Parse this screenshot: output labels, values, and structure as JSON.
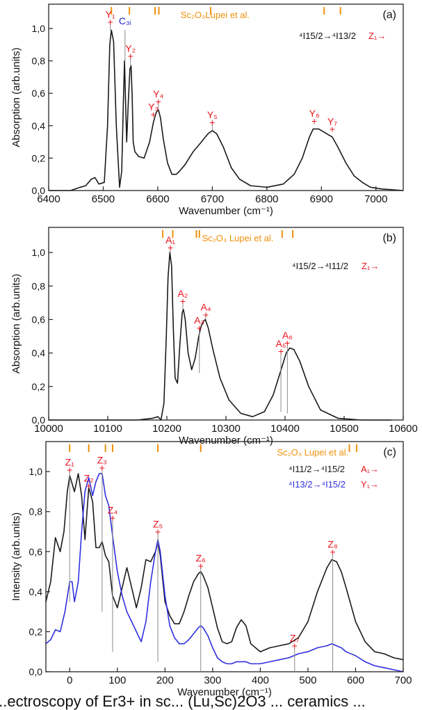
{
  "caption": "...ectroscopy of Er3+ in sc... (Lu,Sc)2O3 ... ceramics ...",
  "colors": {
    "black": "#1a1a1a",
    "blue": "#2f2fe0",
    "orange": "#f0900a",
    "red": "#e8141e",
    "c3i": "#2020d0",
    "gray": "#8a8a8a"
  },
  "chart_data": [
    {
      "type": "line",
      "panel_label": "(a)",
      "xlabel": "Wavenumber (cm⁻¹)",
      "ylabel": "Absorption (arb.units)",
      "xlim": [
        6400,
        7050
      ],
      "ylim": [
        0,
        1.15
      ],
      "x_ticks": [
        6400,
        6500,
        6600,
        6700,
        6800,
        6900,
        7000
      ],
      "y_ticks": [
        0.0,
        0.2,
        0.4,
        0.6,
        0.8,
        1.0
      ],
      "y_tick_labels": [
        "0,0",
        "0,2",
        "0,4",
        "0,6",
        "0,8",
        "1,0"
      ],
      "reference_label": "Sc₂O₃Lupei et al.",
      "reference_ticks": [
        6515,
        6548,
        6595,
        6602,
        6697,
        6905,
        6935
      ],
      "transition": {
        "from": "⁴I15/2",
        "to": "⁴I13/2",
        "level": "Z₁"
      },
      "series": [
        {
          "color": "#1a1a1a",
          "x": [
            6400,
            6440,
            6458,
            6468,
            6478,
            6485,
            6492,
            6502,
            6508,
            6512,
            6515,
            6519,
            6524,
            6530,
            6534,
            6537,
            6539,
            6541,
            6543,
            6546,
            6549,
            6551,
            6553,
            6555,
            6558,
            6565,
            6575,
            6585,
            6592,
            6597,
            6601,
            6605,
            6610,
            6618,
            6626,
            6634,
            6640,
            6650,
            6665,
            6680,
            6692,
            6700,
            6708,
            6720,
            6735,
            6750,
            6770,
            6800,
            6830,
            6850,
            6865,
            6878,
            6885,
            6895,
            6905,
            6915,
            6920,
            6930,
            6945,
            6960,
            6975,
            6990,
            7010,
            7050
          ],
          "y": [
            0.0,
            0.0,
            0.02,
            0.03,
            0.07,
            0.08,
            0.04,
            0.05,
            0.4,
            0.9,
            0.99,
            0.92,
            0.4,
            0.02,
            0.12,
            0.55,
            0.8,
            0.55,
            0.3,
            0.55,
            0.75,
            0.77,
            0.6,
            0.3,
            0.24,
            0.21,
            0.2,
            0.3,
            0.42,
            0.48,
            0.5,
            0.45,
            0.32,
            0.17,
            0.1,
            0.1,
            0.12,
            0.16,
            0.24,
            0.3,
            0.35,
            0.37,
            0.35,
            0.27,
            0.14,
            0.07,
            0.03,
            0.02,
            0.04,
            0.1,
            0.2,
            0.33,
            0.38,
            0.38,
            0.36,
            0.34,
            0.33,
            0.27,
            0.17,
            0.09,
            0.05,
            0.02,
            0.01,
            0.0
          ]
        }
      ],
      "peak_labels": [
        {
          "text": "Y₁",
          "x": 6513,
          "y": 1.04,
          "color": "#e8141e",
          "line_to": 0.99
        },
        {
          "text": "C₃ᵢ",
          "x": 6540,
          "y": 1.0,
          "color": "#2020d0",
          "line_to": 0.8
        },
        {
          "text": "Y₂",
          "x": 6550,
          "y": 0.83,
          "color": "#e8141e",
          "line_to": 0.77
        },
        {
          "text": "Y₃",
          "x": 6592,
          "y": 0.47,
          "color": "#e8141e"
        },
        {
          "text": "Y₄",
          "x": 6601,
          "y": 0.55,
          "color": "#e8141e",
          "line_to": 0.5
        },
        {
          "text": "Y₅",
          "x": 6700,
          "y": 0.42,
          "color": "#e8141e",
          "line_to": 0.37
        },
        {
          "text": "Y₆",
          "x": 6887,
          "y": 0.43,
          "color": "#e8141e"
        },
        {
          "text": "Y₇",
          "x": 6920,
          "y": 0.38,
          "color": "#e8141e"
        }
      ]
    },
    {
      "type": "line",
      "panel_label": "(b)",
      "xlabel": "Wavenumber (cm⁻¹)",
      "ylabel": "Absorption (arb.units)",
      "xlim": [
        10000,
        10600
      ],
      "ylim": [
        0,
        1.15
      ],
      "x_ticks": [
        10000,
        10100,
        10200,
        10300,
        10400,
        10500,
        10600
      ],
      "y_ticks": [
        0.0,
        0.2,
        0.4,
        0.6,
        0.8,
        1.0
      ],
      "y_tick_labels": [
        "0,0",
        "0,2",
        "0,4",
        "0,6",
        "0,8",
        "1,0"
      ],
      "reference_label": "Sc₂O₃ Lupei et al.",
      "reference_ticks": [
        10193,
        10210,
        10250,
        10255,
        10395,
        10413
      ],
      "transition": {
        "from": "⁴I15/2",
        "to": "⁴I11/2",
        "level": "Z₁"
      },
      "series": [
        {
          "color": "#1a1a1a",
          "x": [
            10000,
            10150,
            10175,
            10185,
            10190,
            10195,
            10199,
            10202,
            10205,
            10208,
            10211,
            10214,
            10218,
            10222,
            10226,
            10228,
            10231,
            10236,
            10242,
            10248,
            10254,
            10258,
            10262,
            10265,
            10270,
            10278,
            10290,
            10305,
            10325,
            10345,
            10365,
            10380,
            10395,
            10402,
            10408,
            10415,
            10425,
            10440,
            10460,
            10490,
            10530,
            10580
          ],
          "y": [
            0.0,
            0.0,
            0.01,
            0.02,
            0.0,
            0.1,
            0.5,
            0.85,
            1.0,
            0.92,
            0.55,
            0.25,
            0.22,
            0.45,
            0.64,
            0.66,
            0.6,
            0.4,
            0.3,
            0.37,
            0.5,
            0.56,
            0.59,
            0.6,
            0.55,
            0.42,
            0.25,
            0.12,
            0.04,
            0.02,
            0.05,
            0.15,
            0.32,
            0.4,
            0.43,
            0.42,
            0.35,
            0.2,
            0.06,
            0.01,
            0.0,
            0.0
          ]
        }
      ],
      "peak_labels": [
        {
          "text": "A₁",
          "x": 10206,
          "y": 1.03,
          "color": "#e8141e",
          "line_to": 1.0
        },
        {
          "text": "A₂",
          "x": 10227,
          "y": 0.71,
          "color": "#e8141e",
          "line_to": 0.66
        },
        {
          "text": "A₃",
          "x": 10255,
          "y": 0.55,
          "color": "#e8141e",
          "line_to": 0.28
        },
        {
          "text": "A₄",
          "x": 10266,
          "y": 0.63,
          "color": "#e8141e",
          "line_to": 0.6
        },
        {
          "text": "A₅",
          "x": 10393,
          "y": 0.41,
          "color": "#e8141e",
          "line_to": 0.05
        },
        {
          "text": "A₆",
          "x": 10404,
          "y": 0.46,
          "color": "#e8141e",
          "line_to": 0.04
        }
      ]
    },
    {
      "type": "line",
      "panel_label": "(c)",
      "xlabel": "Wavenumber (cm⁻¹)",
      "ylabel": "Intensity (arb.units)",
      "xlim": [
        -50,
        700
      ],
      "ylim": [
        0,
        1.15
      ],
      "x_ticks": [
        0,
        100,
        200,
        300,
        400,
        500,
        600,
        700
      ],
      "y_ticks": [
        0.0,
        0.2,
        0.4,
        0.6,
        0.8,
        1.0
      ],
      "y_tick_labels": [
        "0,0",
        "0,2",
        "0,4",
        "0,6",
        "0,8",
        "1,0"
      ],
      "reference_label": "Sc₂O₃ Lupei et al.",
      "reference_ticks": [
        0,
        40,
        75,
        90,
        185,
        275,
        587,
        602
      ],
      "transitions": [
        {
          "from": "⁴I11/2",
          "to": "⁴I15/2",
          "level": "A₁",
          "color": "#1a1a1a"
        },
        {
          "from": "⁴I13/2",
          "to": "⁴I15/2",
          "level": "Y₁",
          "color": "#2f2fe0"
        }
      ],
      "series": [
        {
          "color": "#1a1a1a",
          "x": [
            -50,
            -40,
            -30,
            -20,
            -12,
            -5,
            0,
            5,
            10,
            18,
            25,
            32,
            40,
            48,
            55,
            62,
            68,
            75,
            82,
            90,
            100,
            110,
            120,
            130,
            140,
            150,
            160,
            170,
            180,
            185,
            190,
            200,
            210,
            220,
            230,
            240,
            250,
            260,
            270,
            275,
            280,
            290,
            300,
            310,
            320,
            330,
            340,
            350,
            360,
            370,
            380,
            390,
            400,
            420,
            440,
            460,
            480,
            500,
            520,
            540,
            550,
            560,
            570,
            580,
            600,
            620,
            640,
            660,
            680,
            700
          ],
          "y": [
            0.35,
            0.45,
            0.67,
            0.6,
            0.7,
            0.9,
            0.98,
            0.94,
            0.9,
            0.99,
            0.88,
            0.66,
            0.92,
            0.85,
            0.62,
            0.62,
            0.65,
            0.58,
            0.55,
            0.38,
            0.32,
            0.42,
            0.52,
            0.42,
            0.32,
            0.42,
            0.56,
            0.55,
            0.6,
            0.65,
            0.58,
            0.35,
            0.28,
            0.24,
            0.24,
            0.3,
            0.38,
            0.45,
            0.49,
            0.5,
            0.48,
            0.42,
            0.32,
            0.22,
            0.15,
            0.14,
            0.15,
            0.22,
            0.26,
            0.23,
            0.14,
            0.12,
            0.1,
            0.12,
            0.13,
            0.14,
            0.17,
            0.25,
            0.4,
            0.52,
            0.56,
            0.55,
            0.5,
            0.42,
            0.25,
            0.15,
            0.1,
            0.09,
            0.07,
            0.06
          ]
        },
        {
          "color": "#2f2fe0",
          "x": [
            -50,
            -40,
            -30,
            -20,
            -10,
            0,
            5,
            10,
            18,
            25,
            32,
            40,
            48,
            55,
            62,
            68,
            75,
            82,
            90,
            100,
            110,
            120,
            130,
            140,
            150,
            160,
            170,
            180,
            185,
            190,
            200,
            210,
            220,
            230,
            240,
            250,
            260,
            270,
            275,
            280,
            290,
            300,
            310,
            320,
            330,
            340,
            350,
            360,
            370,
            380,
            400,
            420,
            440,
            460,
            480,
            500,
            520,
            540,
            550,
            560,
            570,
            580,
            600,
            620,
            640,
            660,
            680,
            700
          ],
          "y": [
            0.14,
            0.16,
            0.21,
            0.2,
            0.3,
            0.45,
            0.45,
            0.35,
            0.45,
            0.7,
            0.9,
            0.97,
            0.88,
            0.95,
            0.99,
            0.99,
            0.88,
            0.83,
            0.68,
            0.5,
            0.38,
            0.3,
            0.25,
            0.2,
            0.15,
            0.25,
            0.45,
            0.6,
            0.66,
            0.6,
            0.38,
            0.23,
            0.17,
            0.14,
            0.14,
            0.16,
            0.19,
            0.22,
            0.23,
            0.22,
            0.18,
            0.12,
            0.07,
            0.05,
            0.04,
            0.04,
            0.05,
            0.05,
            0.05,
            0.04,
            0.04,
            0.05,
            0.06,
            0.07,
            0.09,
            0.1,
            0.12,
            0.13,
            0.14,
            0.13,
            0.12,
            0.1,
            0.08,
            0.05,
            0.03,
            0.02,
            0.01,
            0.0
          ]
        }
      ],
      "peak_labels": [
        {
          "text": "Z₁",
          "x": 0,
          "y": 1.01,
          "color": "#e8141e",
          "line_to": 0.35
        },
        {
          "text": "Z₂",
          "x": 40,
          "y": 0.93,
          "color": "#e8141e"
        },
        {
          "text": "Z₃",
          "x": 68,
          "y": 1.02,
          "color": "#e8141e",
          "line_to": 0.3
        },
        {
          "text": "Z₄",
          "x": 90,
          "y": 0.77,
          "color": "#e8141e",
          "line_to": 0.1
        },
        {
          "text": "Z₅",
          "x": 185,
          "y": 0.7,
          "color": "#e8141e",
          "line_to": 0.05
        },
        {
          "text": "Z₆",
          "x": 275,
          "y": 0.53,
          "color": "#e8141e",
          "line_to": 0.0
        },
        {
          "text": "Z₇",
          "x": 472,
          "y": 0.13,
          "color": "#e8141e",
          "line_to": 0.0
        },
        {
          "text": "Z₈",
          "x": 552,
          "y": 0.6,
          "color": "#e8141e",
          "line_to": 0.0
        }
      ]
    }
  ]
}
